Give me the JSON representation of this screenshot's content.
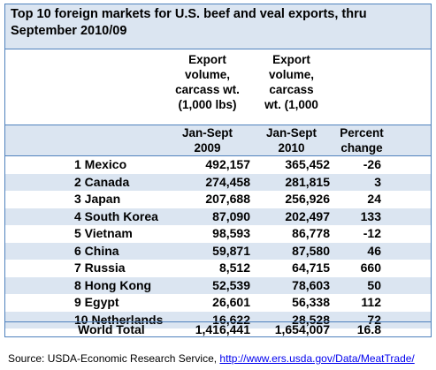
{
  "title": "Top 10 foreign markets for U.S. beef and veal exports, thru September 2010/09",
  "columns": {
    "vol_2009_line1": "Export",
    "vol_2009_line2": "volume,",
    "vol_2009_line3": "carcass wt.",
    "vol_2009_line4": "(1,000 lbs)",
    "vol_2010_line1": "Export",
    "vol_2010_line2": "volume,",
    "vol_2010_line3": "carcass",
    "vol_2010_line4": "wt. (1,000",
    "period_2009_line1": "Jan-Sept",
    "period_2009_line2": "2009",
    "period_2010_line1": "Jan-Sept",
    "period_2010_line2": "2010",
    "pct_line1": "Percent",
    "pct_line2": "change"
  },
  "rows": [
    {
      "rank_name": "1 Mexico",
      "v2009": "492,157",
      "v2010": "365,452",
      "pct": "-26"
    },
    {
      "rank_name": "2 Canada",
      "v2009": "274,458",
      "v2010": "281,815",
      "pct": "3"
    },
    {
      "rank_name": "3 Japan",
      "v2009": "207,688",
      "v2010": "256,926",
      "pct": "24"
    },
    {
      "rank_name": "4 South Korea",
      "v2009": "87,090",
      "v2010": "202,497",
      "pct": "133"
    },
    {
      "rank_name": "5 Vietnam",
      "v2009": "98,593",
      "v2010": "86,778",
      "pct": "-12"
    },
    {
      "rank_name": "6 China",
      "v2009": "59,871",
      "v2010": "87,580",
      "pct": "46"
    },
    {
      "rank_name": "7 Russia",
      "v2009": "8,512",
      "v2010": "64,715",
      "pct": "660"
    },
    {
      "rank_name": "8 Hong Kong",
      "v2009": "52,539",
      "v2010": "78,603",
      "pct": "50"
    },
    {
      "rank_name": "9 Egypt",
      "v2009": "26,601",
      "v2010": "56,338",
      "pct": "112"
    },
    {
      "rank_name": "10 Netherlands",
      "v2009": "16,622",
      "v2010": "28,528",
      "pct": "72"
    }
  ],
  "total": {
    "label": "World Total",
    "v2009": "1,416,441",
    "v2010": "1,654,007",
    "pct": "16.8"
  },
  "source": {
    "prefix": "Source: USDA-Economic Research Service, ",
    "link": "http://www.ers.usda.gov/Data/MeatTrade/"
  }
}
